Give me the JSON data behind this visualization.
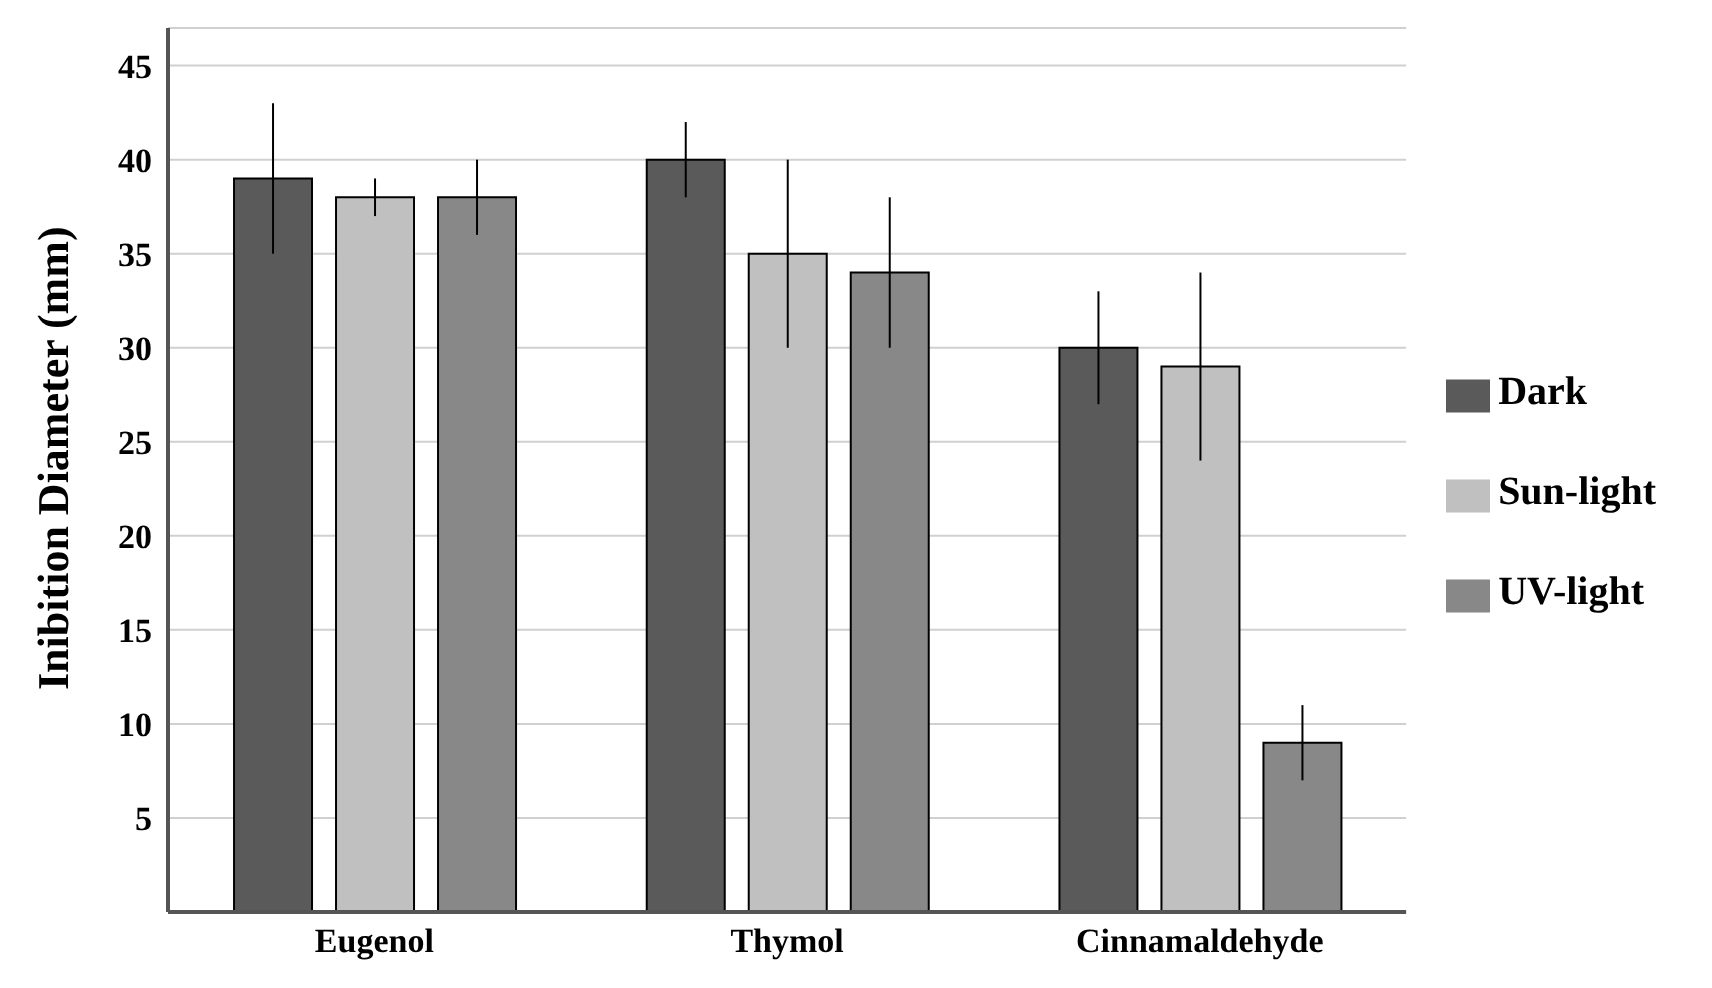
{
  "chart_data": {
    "type": "bar",
    "ylabel": "Inibition Diameter (mm)",
    "categories": [
      "Eugenol",
      "Thymol",
      "Cinnamaldehyde"
    ],
    "series": [
      {
        "name": "Dark",
        "color": "#5a5a5a",
        "values": [
          39,
          40,
          30
        ],
        "errors": [
          [
            35,
            43
          ],
          [
            38,
            42
          ],
          [
            27,
            33
          ]
        ]
      },
      {
        "name": "Sun-light",
        "color": "#c0c0c0",
        "values": [
          38,
          35,
          29
        ],
        "errors": [
          [
            37,
            39
          ],
          [
            30,
            40
          ],
          [
            24,
            34
          ]
        ]
      },
      {
        "name": "UV-light",
        "color": "#888888",
        "values": [
          38,
          34,
          9
        ],
        "errors": [
          [
            36,
            40
          ],
          [
            30,
            38
          ],
          [
            7,
            11
          ]
        ]
      }
    ],
    "ylim": [
      0,
      47
    ],
    "yticks": [
      5,
      10,
      15,
      20,
      25,
      30,
      35,
      40,
      45
    ],
    "grid": "y",
    "legend": "right"
  }
}
